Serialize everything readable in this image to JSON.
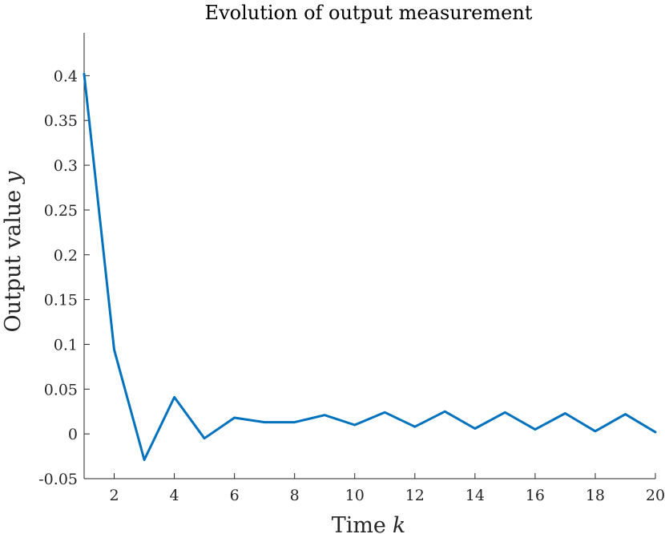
{
  "chart_data": {
    "type": "line",
    "title": "Evolution of output measurement",
    "xlabel": "Time",
    "xlabel_var": "k",
    "ylabel": "Output value",
    "ylabel_var": "y",
    "xlim": [
      1,
      20
    ],
    "ylim": [
      -0.05,
      0.4478
    ],
    "x_ticks": [
      2,
      4,
      6,
      8,
      10,
      12,
      14,
      16,
      18,
      20
    ],
    "y_ticks": [
      -0.05,
      0,
      0.05,
      0.1,
      0.15,
      0.2,
      0.25,
      0.3,
      0.35,
      0.4
    ],
    "y_tick_labels": [
      "-0.05",
      "0",
      "0.05",
      "0.1",
      "0.15",
      "0.2",
      "0.25",
      "0.3",
      "0.35",
      "0.4"
    ],
    "grid": false,
    "series": [
      {
        "color": "#0072BD",
        "x": [
          1,
          2,
          3,
          4,
          5,
          6,
          7,
          8,
          9,
          10,
          11,
          12,
          13,
          14,
          15,
          16,
          17,
          18,
          19,
          20
        ],
        "y": [
          0.402,
          0.094,
          -0.029,
          0.041,
          -0.005,
          0.018,
          0.013,
          0.013,
          0.021,
          0.01,
          0.024,
          0.008,
          0.025,
          0.006,
          0.024,
          0.005,
          0.023,
          0.003,
          0.022,
          0.002
        ]
      }
    ]
  }
}
